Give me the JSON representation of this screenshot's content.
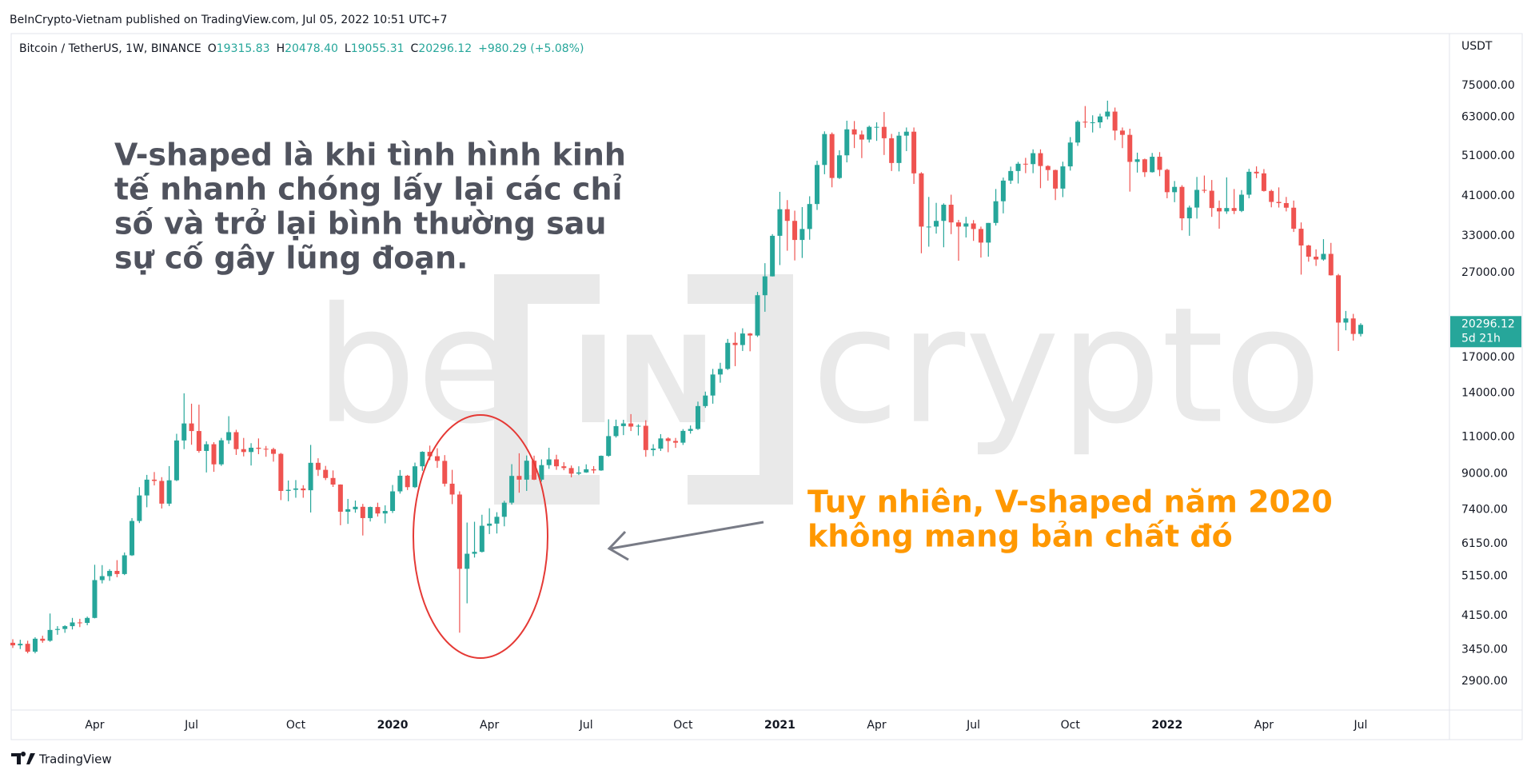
{
  "chart_data": {
    "type": "candlestick",
    "published": "BeInCrypto-Vietnam published on TradingView.com, Jul 05, 2022 10:51 UTC+7",
    "legend": {
      "symbol": "Bitcoin / TetherUS, 1W, BINANCE",
      "items": [
        {
          "label": "O",
          "value": "19315.83"
        },
        {
          "label": "H",
          "value": "20478.40"
        },
        {
          "label": "L",
          "value": "19055.31"
        },
        {
          "label": "C",
          "value": "20296.12"
        }
      ],
      "change": "+980.29 (+5.08%)"
    },
    "currency": "USDT",
    "last_price_label": {
      "price": "20296.12",
      "countdown": "5d 21h"
    },
    "watermark": [
      "be",
      "IN",
      "crypto"
    ],
    "annotations": [
      {
        "color": "#50535e",
        "lines": [
          "V-shaped là khi tình hình kinh",
          "tế nhanh chóng lấy lại các chỉ",
          "số và trở lại bình thường sau",
          "sự cố gây lũng đoạn."
        ]
      },
      {
        "color": "#ff9800",
        "lines": [
          "Tuy nhiên, V-shaped năm 2020",
          "không mang bản chất đó"
        ]
      }
    ],
    "footer": "TradingView",
    "up_color": "#26a69a",
    "down_color": "#ef5350",
    "log_scale": true,
    "grid": false,
    "ylim": [
      2480,
      99500
    ],
    "yticks": [
      {
        "value": 75000,
        "label": "75000.00"
      },
      {
        "value": 63000,
        "label": "63000.00"
      },
      {
        "value": 51000,
        "label": "51000.00"
      },
      {
        "value": 41000,
        "label": "41000.00"
      },
      {
        "value": 33000,
        "label": "33000.00"
      },
      {
        "value": 27000,
        "label": "27000.00"
      },
      {
        "value": 17000,
        "label": "17000.00"
      },
      {
        "value": 14000,
        "label": "14000.00"
      },
      {
        "value": 11000,
        "label": "11000.00"
      },
      {
        "value": 9000,
        "label": "9000.00"
      },
      {
        "value": 7400,
        "label": "7400.00"
      },
      {
        "value": 6150,
        "label": "6150.00"
      },
      {
        "value": 5150,
        "label": "5150.00"
      },
      {
        "value": 4150,
        "label": "4150.00"
      },
      {
        "value": 3450,
        "label": "3450.00"
      },
      {
        "value": 2900,
        "label": "2900.00"
      }
    ],
    "categories": [
      null,
      null,
      null,
      null,
      null,
      null,
      null,
      null,
      null,
      null,
      null,
      "Apr",
      null,
      null,
      null,
      null,
      null,
      null,
      null,
      null,
      null,
      null,
      null,
      null,
      "Jul",
      null,
      null,
      null,
      null,
      null,
      null,
      null,
      null,
      null,
      null,
      null,
      null,
      null,
      "Oct",
      null,
      null,
      null,
      null,
      null,
      null,
      null,
      null,
      null,
      null,
      null,
      null,
      "2020",
      null,
      null,
      null,
      null,
      null,
      null,
      null,
      null,
      null,
      null,
      null,
      null,
      "Apr",
      null,
      null,
      null,
      null,
      null,
      null,
      null,
      null,
      null,
      null,
      null,
      null,
      "Jul",
      null,
      null,
      null,
      null,
      null,
      null,
      null,
      null,
      null,
      null,
      null,
      null,
      "Oct",
      null,
      null,
      null,
      null,
      null,
      null,
      null,
      null,
      null,
      null,
      null,
      null,
      "2021",
      null,
      null,
      null,
      null,
      null,
      null,
      null,
      null,
      null,
      null,
      null,
      null,
      "Apr",
      null,
      null,
      null,
      null,
      null,
      null,
      null,
      null,
      null,
      null,
      null,
      null,
      "Jul",
      null,
      null,
      null,
      null,
      null,
      null,
      null,
      null,
      null,
      null,
      null,
      null,
      "Oct",
      null,
      null,
      null,
      null,
      null,
      null,
      null,
      null,
      null,
      null,
      null,
      null,
      "2022",
      null,
      null,
      null,
      null,
      null,
      null,
      null,
      null,
      null,
      null,
      null,
      null,
      "Apr",
      null,
      null,
      null,
      null,
      null,
      null,
      null,
      null,
      null,
      null,
      null,
      null,
      "Jul"
    ],
    "candles": [
      [
        3580,
        3650,
        3480,
        3530
      ],
      [
        3530,
        3640,
        3460,
        3560
      ],
      [
        3560,
        3620,
        3380,
        3410
      ],
      [
        3410,
        3690,
        3380,
        3660
      ],
      [
        3660,
        3720,
        3580,
        3620
      ],
      [
        3620,
        4200,
        3600,
        3840
      ],
      [
        3840,
        3920,
        3740,
        3860
      ],
      [
        3860,
        3940,
        3780,
        3920
      ],
      [
        3920,
        4100,
        3850,
        4000
      ],
      [
        4000,
        4080,
        3900,
        3990
      ],
      [
        3990,
        4130,
        3940,
        4100
      ],
      [
        4100,
        5480,
        4090,
        5040
      ],
      [
        5040,
        5470,
        4950,
        5150
      ],
      [
        5150,
        5350,
        5020,
        5300
      ],
      [
        5300,
        5620,
        5120,
        5210
      ],
      [
        5210,
        5860,
        5180,
        5770
      ],
      [
        5770,
        7070,
        5750,
        6960
      ],
      [
        6960,
        8370,
        6880,
        8000
      ],
      [
        8000,
        8950,
        7500,
        8720
      ],
      [
        8720,
        9090,
        8450,
        8660
      ],
      [
        8660,
        8840,
        7450,
        7650
      ],
      [
        7650,
        9390,
        7550,
        8690
      ],
      [
        8690,
        11200,
        8650,
        10800
      ],
      [
        10800,
        13970,
        10300,
        11850
      ],
      [
        11850,
        13200,
        10550,
        11370
      ],
      [
        11370,
        13130,
        10100,
        10200
      ],
      [
        10200,
        10750,
        9070,
        10580
      ],
      [
        10580,
        10700,
        9100,
        9480
      ],
      [
        9480,
        10950,
        9400,
        10810
      ],
      [
        10810,
        12330,
        10600,
        11300
      ],
      [
        11300,
        11450,
        9980,
        10300
      ],
      [
        10300,
        10950,
        9900,
        10140
      ],
      [
        10140,
        10640,
        9420,
        10380
      ],
      [
        10380,
        10920,
        10020,
        10320
      ],
      [
        10320,
        10480,
        9880,
        10300
      ],
      [
        10300,
        10380,
        9620,
        10040
      ],
      [
        10040,
        10090,
        7800,
        8200
      ],
      [
        8200,
        8680,
        7750,
        8250
      ],
      [
        8250,
        8700,
        7900,
        8310
      ],
      [
        8310,
        8460,
        7900,
        8230
      ],
      [
        8230,
        10540,
        7290,
        9560
      ],
      [
        9560,
        9800,
        8900,
        9200
      ],
      [
        9200,
        9400,
        8700,
        8800
      ],
      [
        8800,
        9170,
        8380,
        8490
      ],
      [
        8490,
        8500,
        6800,
        7320
      ],
      [
        7320,
        7850,
        6850,
        7420
      ],
      [
        7420,
        7780,
        7280,
        7520
      ],
      [
        7520,
        7640,
        6430,
        7070
      ],
      [
        7070,
        7530,
        6940,
        7510
      ],
      [
        7510,
        7690,
        7130,
        7250
      ],
      [
        7250,
        7580,
        6870,
        7350
      ],
      [
        7350,
        8470,
        7270,
        8180
      ],
      [
        8180,
        9190,
        8080,
        8910
      ],
      [
        8910,
        8950,
        8240,
        8370
      ],
      [
        8370,
        9570,
        8330,
        9380
      ],
      [
        9380,
        10180,
        9150,
        10150
      ],
      [
        10150,
        10500,
        9700,
        9910
      ],
      [
        9910,
        10350,
        9300,
        9660
      ],
      [
        9660,
        9970,
        8400,
        8530
      ],
      [
        8530,
        9200,
        7630,
        8040
      ],
      [
        8040,
        8180,
        3782,
        5360
      ],
      [
        5360,
        6900,
        4440,
        5820
      ],
      [
        5820,
        6930,
        5700,
        5880
      ],
      [
        5880,
        7200,
        5860,
        6780
      ],
      [
        6780,
        7460,
        6480,
        6860
      ],
      [
        6860,
        7300,
        6500,
        7120
      ],
      [
        7120,
        7770,
        6760,
        7690
      ],
      [
        7690,
        9490,
        7610,
        8900
      ],
      [
        8900,
        10070,
        8120,
        8720
      ],
      [
        8720,
        9950,
        8200,
        9670
      ],
      [
        9670,
        9940,
        8700,
        8720
      ],
      [
        8720,
        9740,
        8630,
        9440
      ],
      [
        9440,
        10380,
        9250,
        9740
      ],
      [
        9740,
        9990,
        9200,
        9380
      ],
      [
        9380,
        9590,
        9180,
        9290
      ],
      [
        9290,
        9420,
        8830,
        9010
      ],
      [
        9010,
        9380,
        8940,
        9070
      ],
      [
        9070,
        9480,
        9050,
        9230
      ],
      [
        9230,
        9390,
        9020,
        9170
      ],
      [
        9170,
        9950,
        9150,
        9930
      ],
      [
        9930,
        12120,
        9880,
        11060
      ],
      [
        11060,
        12100,
        10970,
        11680
      ],
      [
        11680,
        12090,
        11120,
        11850
      ],
      [
        11850,
        12470,
        11370,
        11650
      ],
      [
        11650,
        11800,
        11100,
        11700
      ],
      [
        11700,
        12060,
        9880,
        10250
      ],
      [
        10250,
        10580,
        9920,
        10330
      ],
      [
        10330,
        11180,
        10200,
        10920
      ],
      [
        10920,
        10990,
        10130,
        10770
      ],
      [
        10770,
        10950,
        10370,
        10670
      ],
      [
        10670,
        11490,
        10540,
        11380
      ],
      [
        11380,
        11720,
        11210,
        11500
      ],
      [
        11500,
        13350,
        11440,
        13030
      ],
      [
        13030,
        14100,
        12900,
        13800
      ],
      [
        13800,
        15960,
        13200,
        15480
      ],
      [
        15480,
        16500,
        14800,
        15960
      ],
      [
        15960,
        18800,
        15870,
        18400
      ],
      [
        18400,
        19500,
        16200,
        18180
      ],
      [
        18180,
        19920,
        17600,
        19360
      ],
      [
        19360,
        19420,
        17570,
        19150
      ],
      [
        19150,
        24300,
        19000,
        23860
      ],
      [
        23860,
        28420,
        21800,
        26450
      ],
      [
        26450,
        33300,
        26430,
        33000
      ],
      [
        33000,
        41950,
        28130,
        38150
      ],
      [
        38150,
        40100,
        30420,
        35800
      ],
      [
        35800,
        37850,
        28850,
        32260
      ],
      [
        32260,
        38600,
        29240,
        34250
      ],
      [
        34250,
        40950,
        32300,
        39250
      ],
      [
        39250,
        49700,
        38000,
        48580
      ],
      [
        48580,
        58350,
        46180,
        57500
      ],
      [
        57500,
        58000,
        43000,
        45240
      ],
      [
        45240,
        52640,
        45000,
        51200
      ],
      [
        51200,
        61850,
        49270,
        59000
      ],
      [
        59000,
        61740,
        53270,
        57350
      ],
      [
        57350,
        58600,
        50430,
        55800
      ],
      [
        55800,
        60200,
        54900,
        59800
      ],
      [
        59800,
        61300,
        55400,
        59800
      ],
      [
        59800,
        64850,
        51300,
        56200
      ],
      [
        56200,
        57550,
        47000,
        49100
      ],
      [
        49100,
        58200,
        46900,
        57000
      ],
      [
        57000,
        59600,
        52400,
        58250
      ],
      [
        58250,
        59600,
        43800,
        46400
      ],
      [
        46400,
        46700,
        30000,
        34700
      ],
      [
        34700,
        40800,
        31100,
        34700
      ],
      [
        34700,
        39500,
        33400,
        35800
      ],
      [
        35800,
        39400,
        31000,
        39100
      ],
      [
        39100,
        41300,
        33300,
        35500
      ],
      [
        35500,
        36000,
        28800,
        34700
      ],
      [
        34700,
        36600,
        32700,
        35300
      ],
      [
        35300,
        35950,
        32100,
        34250
      ],
      [
        34250,
        34700,
        29300,
        31800
      ],
      [
        31800,
        35400,
        29450,
        35400
      ],
      [
        35400,
        42600,
        34900,
        39850
      ],
      [
        39850,
        45350,
        37300,
        44600
      ],
      [
        44600,
        48140,
        43800,
        47000
      ],
      [
        47000,
        49400,
        43900,
        48900
      ],
      [
        48900,
        50500,
        46450,
        48800
      ],
      [
        48800,
        52900,
        46450,
        51800
      ],
      [
        51800,
        52900,
        42800,
        48300
      ],
      [
        48300,
        48500,
        44600,
        47250
      ],
      [
        47250,
        47350,
        40100,
        42700
      ],
      [
        42700,
        49450,
        40750,
        48200
      ],
      [
        48200,
        56550,
        47100,
        54900
      ],
      [
        54900,
        62000,
        53900,
        61500
      ],
      [
        61500,
        67000,
        59500,
        61300
      ],
      [
        61300,
        63700,
        58000,
        61300
      ],
      [
        61300,
        64250,
        59400,
        63300
      ],
      [
        63300,
        69000,
        62280,
        65000
      ],
      [
        65000,
        66450,
        55600,
        58600
      ],
      [
        58600,
        59600,
        53250,
        57250
      ],
      [
        57250,
        59200,
        42000,
        49400
      ],
      [
        49400,
        51950,
        46600,
        50100
      ],
      [
        50100,
        50300,
        45500,
        46700
      ],
      [
        46700,
        51870,
        46600,
        50800
      ],
      [
        50800,
        52100,
        45700,
        47300
      ],
      [
        47300,
        47570,
        40500,
        41870
      ],
      [
        41870,
        44500,
        39650,
        43100
      ],
      [
        43100,
        43500,
        34000,
        36300
      ],
      [
        36300,
        38900,
        33000,
        38500
      ],
      [
        38500,
        45500,
        36250,
        42400
      ],
      [
        42400,
        45850,
        41700,
        42200
      ],
      [
        42200,
        44750,
        36600,
        38400
      ],
      [
        38400,
        40000,
        34300,
        37700
      ],
      [
        37700,
        45400,
        37200,
        38400
      ],
      [
        38400,
        42600,
        37150,
        37800
      ],
      [
        37800,
        42350,
        37550,
        41300
      ],
      [
        41300,
        47570,
        40500,
        46800
      ],
      [
        46800,
        48200,
        45200,
        46400
      ],
      [
        46400,
        47500,
        42000,
        42150
      ],
      [
        42150,
        42450,
        38550,
        39700
      ],
      [
        39700,
        42980,
        38500,
        39450
      ],
      [
        39450,
        40800,
        37700,
        38470
      ],
      [
        38470,
        40000,
        33700,
        34300
      ],
      [
        34300,
        35500,
        26700,
        31300
      ],
      [
        31300,
        31420,
        28650,
        29450
      ],
      [
        29450,
        30650,
        28000,
        29000
      ],
      [
        29000,
        32400,
        28800,
        29900
      ],
      [
        29900,
        31750,
        26560,
        26600
      ],
      [
        26600,
        26800,
        17600,
        20550
      ],
      [
        20550,
        21900,
        19700,
        21020
      ],
      [
        21020,
        21550,
        18630,
        19315.83
      ],
      [
        19315.83,
        20478.4,
        19055.31,
        20296.12
      ]
    ]
  }
}
